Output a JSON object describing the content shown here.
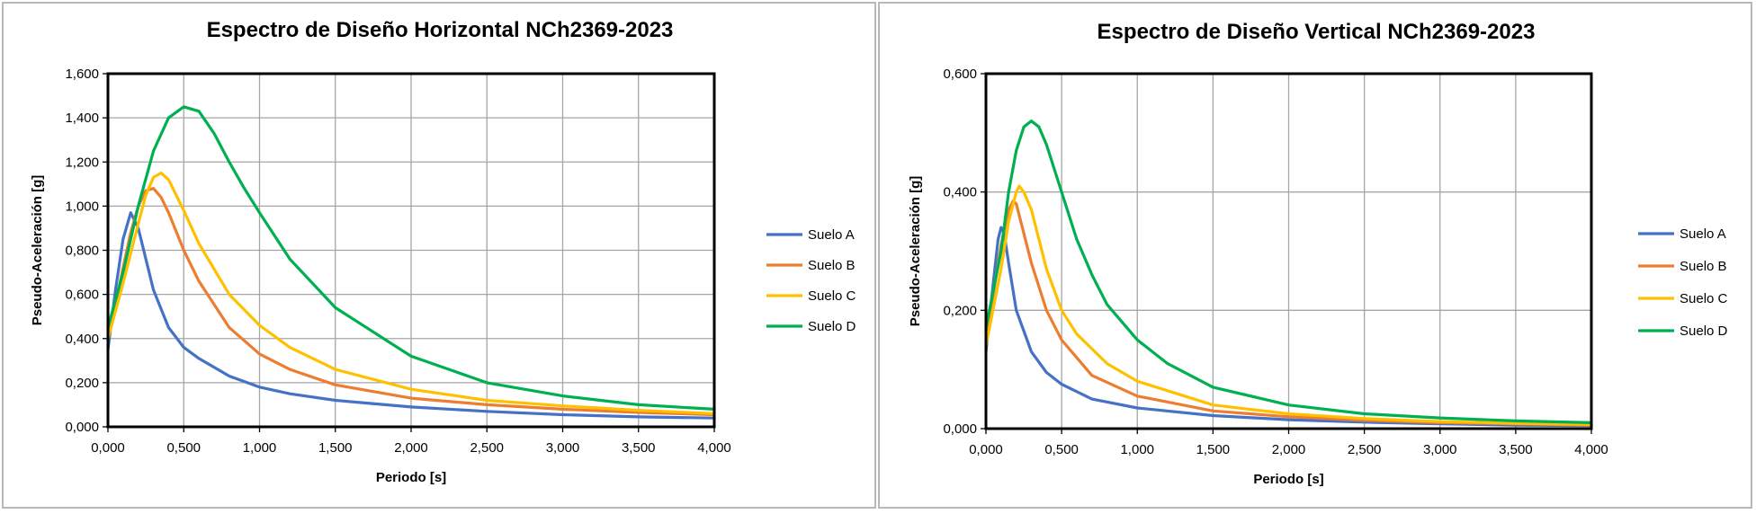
{
  "chart_data": [
    {
      "type": "line",
      "title": "Espectro de Diseño Horizontal NCh2369-2023",
      "xlabel": "Periodo [s]",
      "ylabel": "Pseudo-Aceleración [g]",
      "xlim": [
        0,
        4
      ],
      "ylim": [
        0,
        1.6
      ],
      "xticks": [
        0,
        0.5,
        1,
        1.5,
        2,
        2.5,
        3,
        3.5,
        4
      ],
      "xtick_labels": [
        "0,000",
        "0,500",
        "1,000",
        "1,500",
        "2,000",
        "2,500",
        "3,000",
        "3,500",
        "4,000"
      ],
      "yticks": [
        0,
        0.2,
        0.4,
        0.6,
        0.8,
        1.0,
        1.2,
        1.4,
        1.6
      ],
      "ytick_labels": [
        "0,000",
        "0,200",
        "0,400",
        "0,600",
        "0,800",
        "1,000",
        "1,200",
        "1,400",
        "1,600"
      ],
      "grid": true,
      "legend_position": "right",
      "series": [
        {
          "name": "Suelo A",
          "color": "#4472c4",
          "x": [
            0,
            0.05,
            0.1,
            0.15,
            0.2,
            0.3,
            0.4,
            0.5,
            0.6,
            0.8,
            1.0,
            1.2,
            1.5,
            2.0,
            2.5,
            3.0,
            3.5,
            4.0
          ],
          "y": [
            0.35,
            0.62,
            0.85,
            0.97,
            0.9,
            0.62,
            0.45,
            0.36,
            0.31,
            0.23,
            0.18,
            0.15,
            0.12,
            0.09,
            0.07,
            0.055,
            0.045,
            0.04
          ]
        },
        {
          "name": "Suelo B",
          "color": "#ed7d31",
          "x": [
            0,
            0.05,
            0.1,
            0.15,
            0.2,
            0.25,
            0.3,
            0.35,
            0.4,
            0.5,
            0.6,
            0.8,
            1.0,
            1.2,
            1.5,
            2.0,
            2.5,
            3.0,
            3.5,
            4.0
          ],
          "y": [
            0.4,
            0.55,
            0.72,
            0.88,
            1.0,
            1.07,
            1.08,
            1.04,
            0.97,
            0.8,
            0.66,
            0.45,
            0.33,
            0.26,
            0.19,
            0.13,
            0.1,
            0.08,
            0.065,
            0.055
          ]
        },
        {
          "name": "Suelo C",
          "color": "#ffc000",
          "x": [
            0,
            0.1,
            0.2,
            0.25,
            0.3,
            0.35,
            0.4,
            0.5,
            0.6,
            0.8,
            1.0,
            1.2,
            1.5,
            2.0,
            2.5,
            3.0,
            3.5,
            4.0
          ],
          "y": [
            0.4,
            0.65,
            0.92,
            1.05,
            1.13,
            1.15,
            1.12,
            0.98,
            0.83,
            0.6,
            0.46,
            0.36,
            0.26,
            0.17,
            0.12,
            0.095,
            0.075,
            0.06
          ]
        },
        {
          "name": "Suelo D",
          "color": "#00b050",
          "x": [
            0,
            0.1,
            0.2,
            0.3,
            0.4,
            0.5,
            0.6,
            0.7,
            0.8,
            0.9,
            1.0,
            1.2,
            1.5,
            2.0,
            2.5,
            3.0,
            3.5,
            4.0
          ],
          "y": [
            0.45,
            0.7,
            1.0,
            1.25,
            1.4,
            1.45,
            1.43,
            1.33,
            1.2,
            1.08,
            0.97,
            0.76,
            0.54,
            0.32,
            0.2,
            0.14,
            0.1,
            0.08
          ]
        }
      ]
    },
    {
      "type": "line",
      "title": "Espectro de Diseño Vertical NCh2369-2023",
      "xlabel": "Periodo [s]",
      "ylabel": "Pseudo-Aceleración [g]",
      "xlim": [
        0,
        4
      ],
      "ylim": [
        0,
        0.6
      ],
      "xticks": [
        0,
        0.5,
        1,
        1.5,
        2,
        2.5,
        3,
        3.5,
        4
      ],
      "xtick_labels": [
        "0,000",
        "0,500",
        "1,000",
        "1,500",
        "2,000",
        "2,500",
        "3,000",
        "3,500",
        "4,000"
      ],
      "yticks": [
        0,
        0.2,
        0.4,
        0.6
      ],
      "ytick_labels": [
        "0,000",
        "0,200",
        "0,400",
        "0,600"
      ],
      "grid": true,
      "legend_position": "right",
      "series": [
        {
          "name": "Suelo A",
          "color": "#4472c4",
          "x": [
            0,
            0.05,
            0.08,
            0.1,
            0.12,
            0.15,
            0.2,
            0.3,
            0.4,
            0.5,
            0.7,
            1.0,
            1.5,
            2.0,
            2.5,
            3.0,
            3.5,
            4.0
          ],
          "y": [
            0.13,
            0.25,
            0.32,
            0.34,
            0.33,
            0.28,
            0.2,
            0.13,
            0.095,
            0.075,
            0.05,
            0.035,
            0.022,
            0.015,
            0.011,
            0.008,
            0.006,
            0.005
          ]
        },
        {
          "name": "Suelo B",
          "color": "#ed7d31",
          "x": [
            0,
            0.05,
            0.1,
            0.15,
            0.18,
            0.2,
            0.25,
            0.3,
            0.4,
            0.5,
            0.7,
            1.0,
            1.5,
            2.0,
            2.5,
            3.0,
            3.5,
            4.0
          ],
          "y": [
            0.15,
            0.23,
            0.31,
            0.37,
            0.385,
            0.38,
            0.33,
            0.28,
            0.2,
            0.15,
            0.09,
            0.055,
            0.03,
            0.02,
            0.014,
            0.01,
            0.008,
            0.006
          ]
        },
        {
          "name": "Suelo C",
          "color": "#ffc000",
          "x": [
            0,
            0.1,
            0.15,
            0.2,
            0.22,
            0.25,
            0.3,
            0.35,
            0.4,
            0.5,
            0.6,
            0.8,
            1.0,
            1.5,
            2.0,
            2.5,
            3.0,
            3.5,
            4.0
          ],
          "y": [
            0.14,
            0.27,
            0.35,
            0.4,
            0.41,
            0.4,
            0.37,
            0.32,
            0.27,
            0.2,
            0.16,
            0.11,
            0.08,
            0.04,
            0.025,
            0.017,
            0.012,
            0.009,
            0.007
          ]
        },
        {
          "name": "Suelo D",
          "color": "#00b050",
          "x": [
            0,
            0.1,
            0.15,
            0.2,
            0.25,
            0.3,
            0.35,
            0.4,
            0.5,
            0.6,
            0.7,
            0.8,
            1.0,
            1.2,
            1.5,
            2.0,
            2.5,
            3.0,
            3.5,
            4.0
          ],
          "y": [
            0.17,
            0.3,
            0.4,
            0.47,
            0.51,
            0.52,
            0.51,
            0.48,
            0.4,
            0.32,
            0.26,
            0.21,
            0.15,
            0.11,
            0.07,
            0.04,
            0.025,
            0.018,
            0.013,
            0.01
          ]
        }
      ]
    }
  ]
}
